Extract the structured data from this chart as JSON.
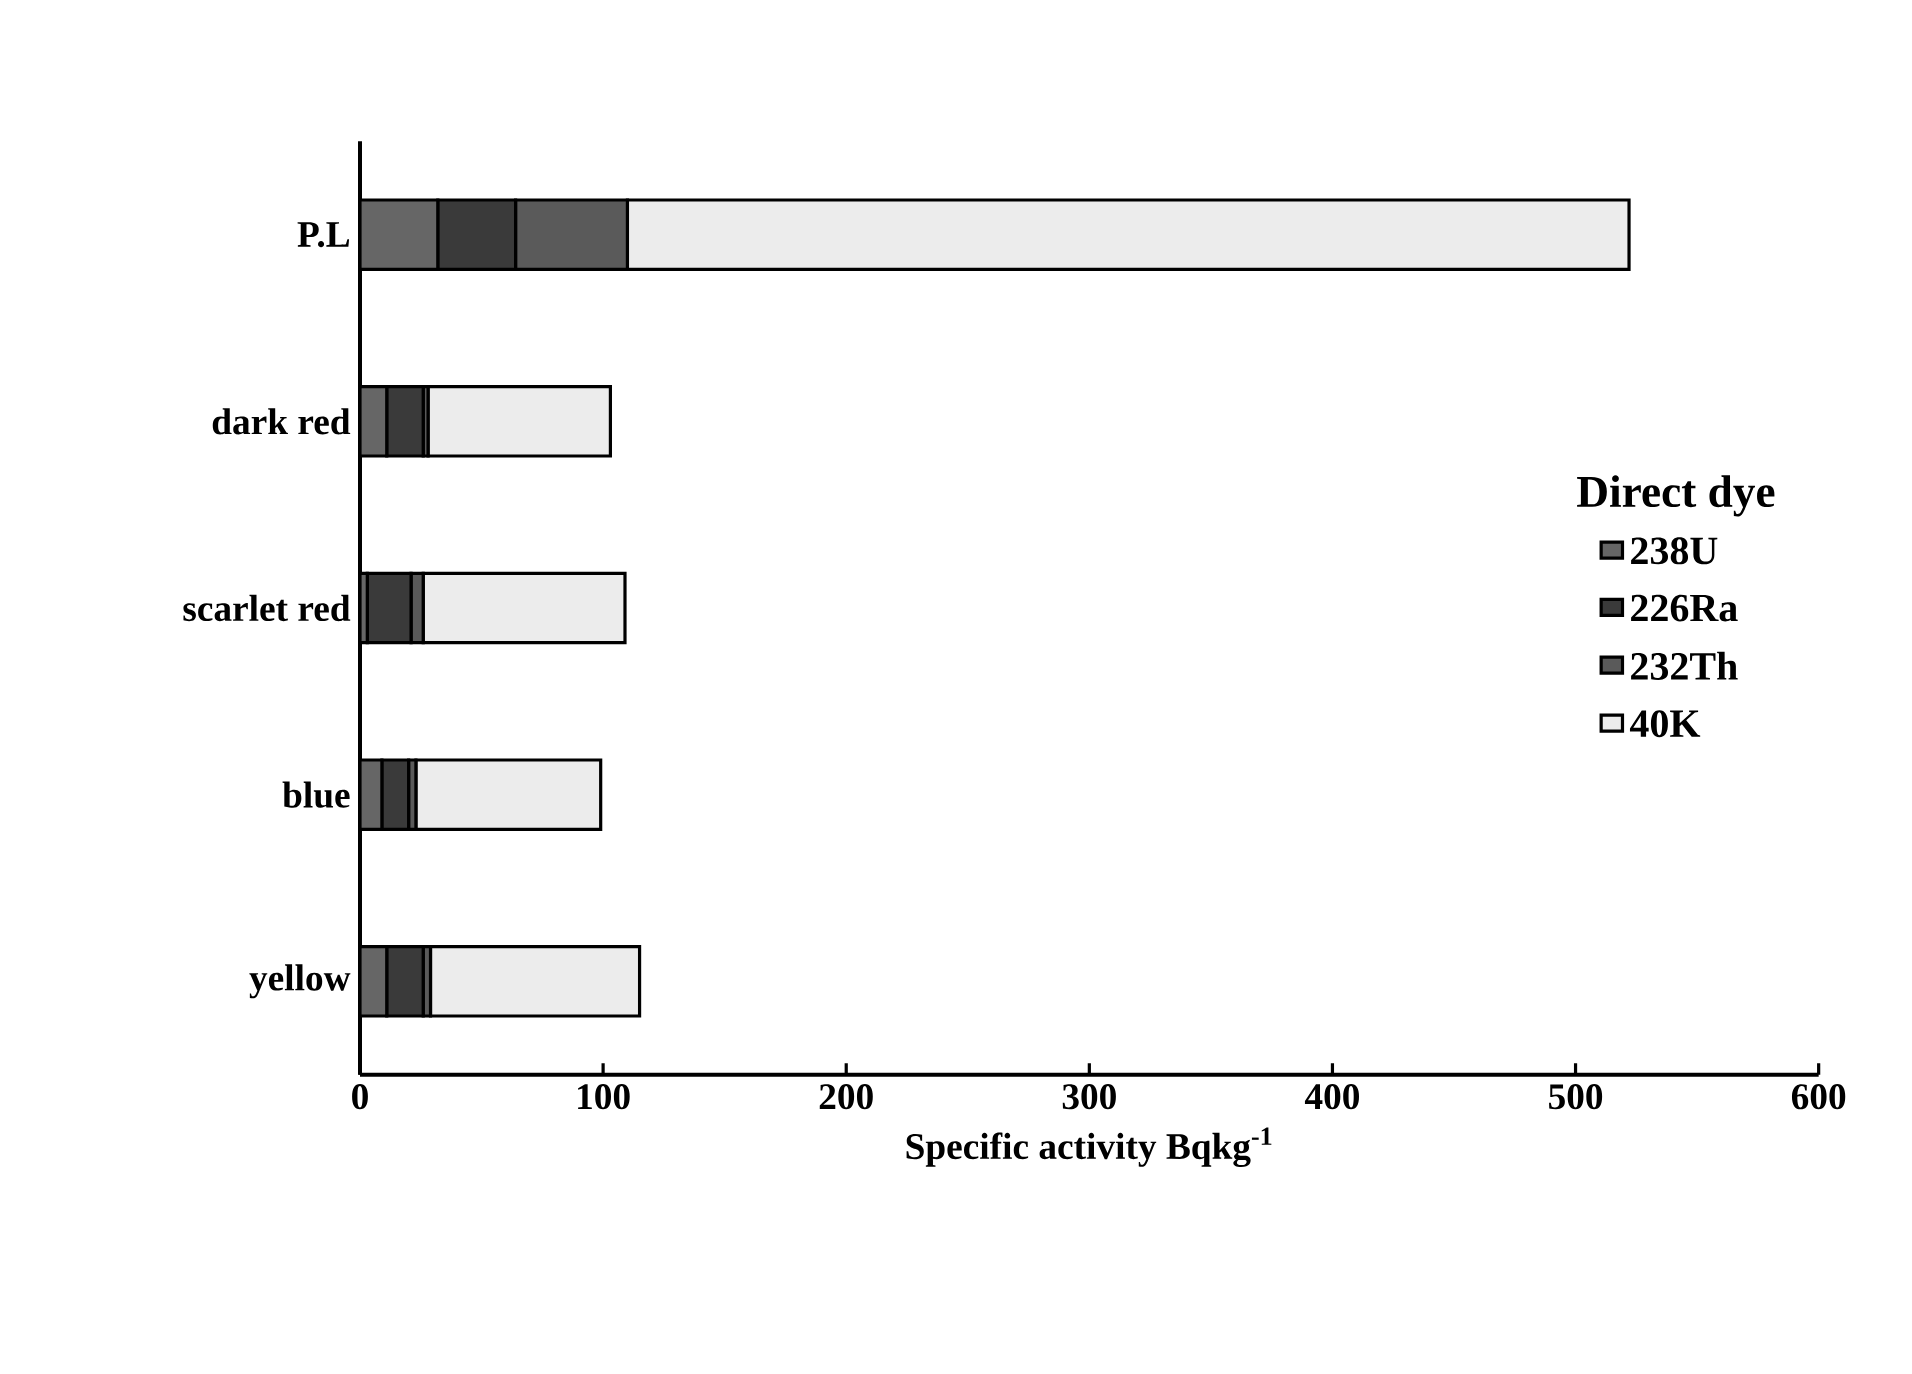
{
  "chart_data": {
    "type": "bar",
    "orientation": "horizontal",
    "stacked": true,
    "categories": [
      "P.L",
      "dark red",
      "scarlet red",
      "blue",
      "yellow"
    ],
    "series": [
      {
        "name": "238U",
        "color": "#666666",
        "values": [
          32,
          11,
          3,
          9,
          11
        ]
      },
      {
        "name": "226Ra",
        "color": "#3a3a3a",
        "values": [
          32,
          15,
          18,
          11,
          15
        ]
      },
      {
        "name": "232Th",
        "color": "#5a5a5a",
        "values": [
          46,
          2,
          5,
          3,
          3
        ]
      },
      {
        "name": "40K",
        "color": "#ececec",
        "values": [
          412,
          75,
          83,
          76,
          86
        ]
      }
    ],
    "xlabel": "Specific activity Bqkg$^{-1}$",
    "legend_title": "Direct dye",
    "legend": "right",
    "xlim": [
      0,
      600
    ],
    "xticks": [
      0,
      100,
      200,
      300,
      400,
      500,
      600
    ]
  }
}
